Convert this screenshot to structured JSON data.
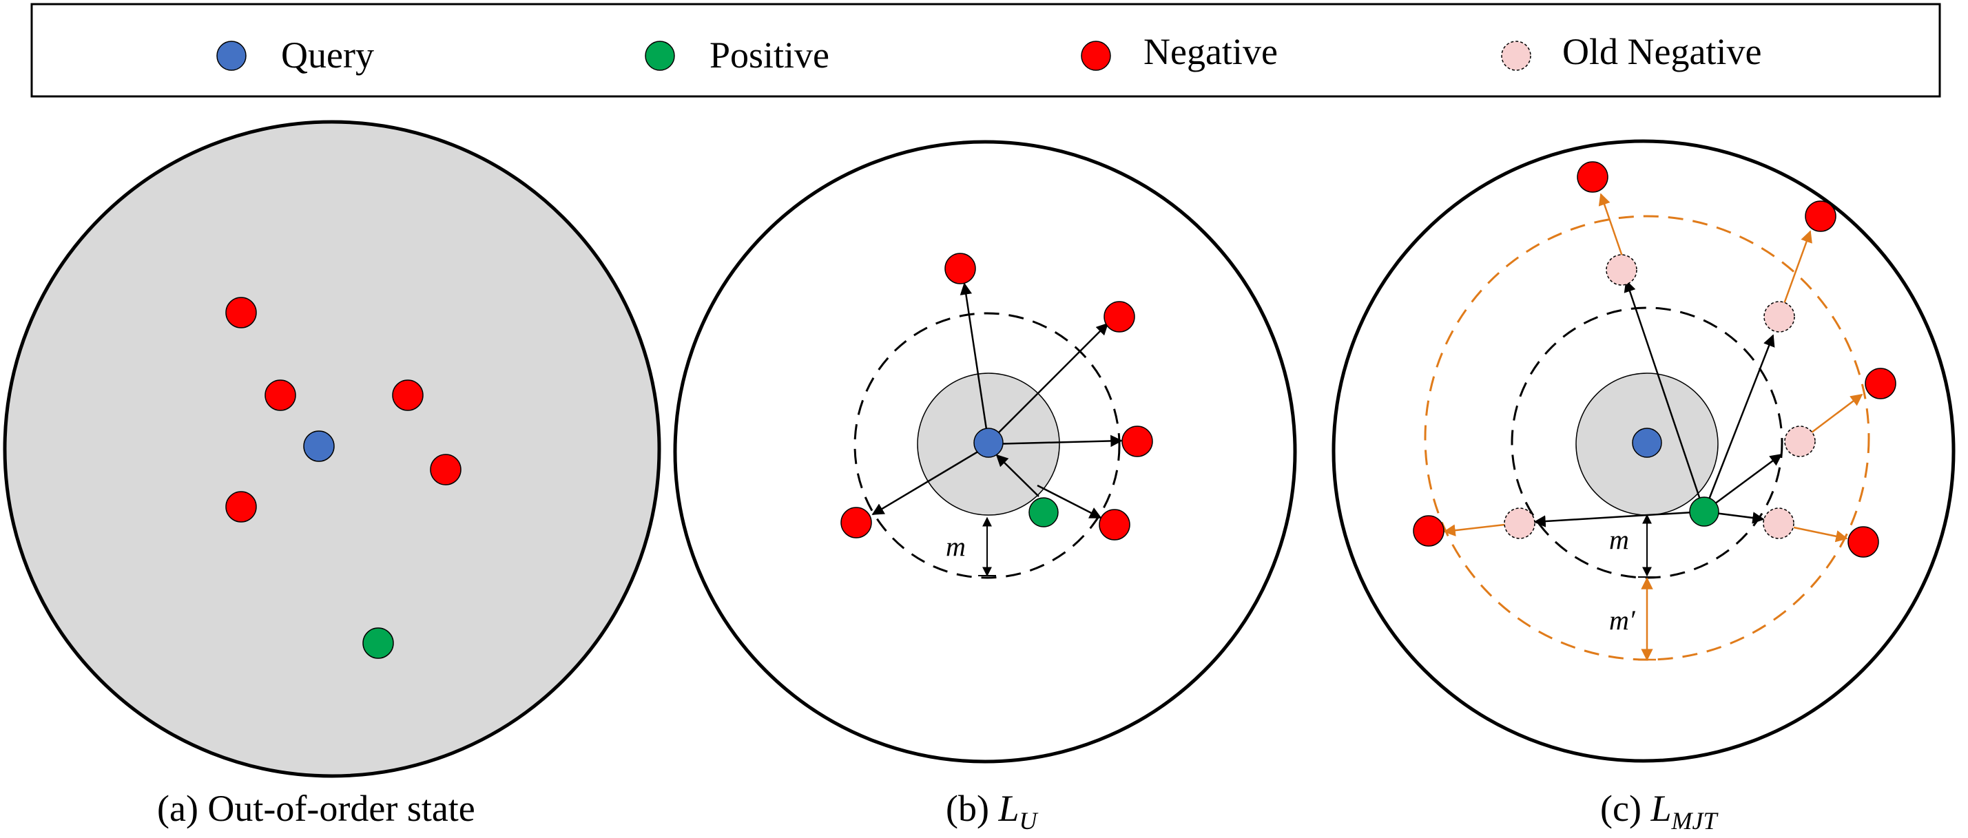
{
  "legend": {
    "query": "Query",
    "positive": "Positive",
    "negative": "Negative",
    "old_negative": "Old Negative"
  },
  "captions": {
    "a_text": "(a) Out-of-order state",
    "b_prefix": "(b) ",
    "b_main": "L",
    "b_sub": "U",
    "c_prefix": "(c) ",
    "c_main": "L",
    "c_sub": "MJT"
  },
  "labels": {
    "margin": "m",
    "margin_prime": "m′"
  },
  "colors": {
    "query": "#4472c4",
    "positive": "#00a650",
    "negative": "#ff0000",
    "old_negative_fill": "#f8d0d0",
    "orange": "#e07b1a",
    "panel_gray": "#d9d9d9"
  }
}
